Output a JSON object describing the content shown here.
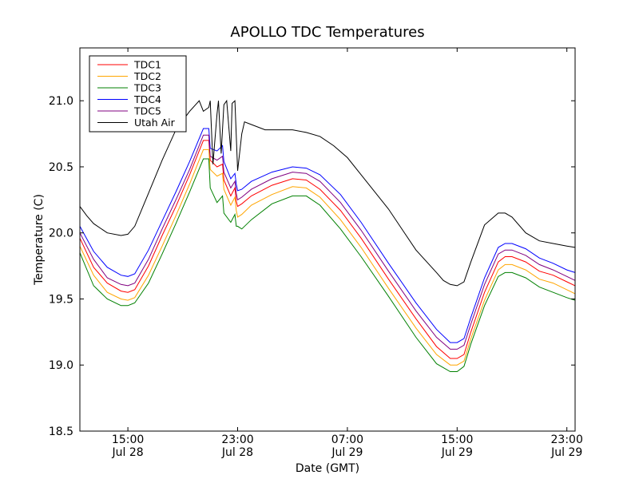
{
  "chart_data": {
    "type": "line",
    "title": "APOLLO TDC Temperatures",
    "xlabel": "Date (GMT)",
    "ylabel": "Temperature (C)",
    "x_unit": "hours since Jul 28 00:00 GMT",
    "xlim": [
      11.5,
      47.6
    ],
    "ylim": [
      18.5,
      21.4
    ],
    "grid": false,
    "legend_position": "top-left",
    "y_ticks": [
      "18.5",
      "19.0",
      "19.5",
      "20.0",
      "20.5",
      "21.0"
    ],
    "y_tick_values": [
      18.5,
      19.0,
      19.5,
      20.0,
      20.5,
      21.0
    ],
    "x_ticks": [
      {
        "value": 15,
        "time": "15:00",
        "date": "Jul 28"
      },
      {
        "value": 23,
        "time": "23:00",
        "date": "Jul 28"
      },
      {
        "value": 31,
        "time": "07:00",
        "date": "Jul 29"
      },
      {
        "value": 39,
        "time": "15:00",
        "date": "Jul 29"
      },
      {
        "value": 47,
        "time": "23:00",
        "date": "Jul 29"
      }
    ],
    "series": [
      {
        "name": "TDC1",
        "color": "#ff0000",
        "x": [
          11.5,
          12.5,
          13.5,
          14.5,
          15.0,
          15.5,
          16.5,
          17.5,
          18.5,
          19.5,
          20.5,
          20.9,
          21.0,
          21.5,
          21.9,
          22.0,
          22.5,
          22.8,
          22.9,
          23.0,
          23.3,
          24.0,
          25.5,
          27.0,
          28.0,
          29.0,
          30.5,
          32.0,
          34.0,
          36.0,
          37.5,
          38.5,
          39.0,
          39.5,
          40.0,
          41.0,
          42.0,
          42.5,
          43.0,
          44.0,
          45.0,
          46.0,
          47.0,
          47.6
        ],
        "y": [
          19.96,
          19.74,
          19.62,
          19.56,
          19.55,
          19.57,
          19.75,
          19.98,
          20.2,
          20.44,
          20.7,
          20.7,
          20.55,
          20.5,
          20.52,
          20.4,
          20.28,
          20.34,
          20.24,
          20.2,
          20.22,
          20.28,
          20.36,
          20.41,
          20.4,
          20.33,
          20.17,
          19.96,
          19.65,
          19.35,
          19.14,
          19.05,
          19.05,
          19.08,
          19.25,
          19.55,
          19.78,
          19.82,
          19.82,
          19.78,
          19.71,
          19.68,
          19.63,
          19.6
        ]
      },
      {
        "name": "TDC2",
        "color": "#ffa500",
        "x": [
          11.5,
          12.5,
          13.5,
          14.5,
          15.0,
          15.5,
          16.5,
          17.5,
          18.5,
          19.5,
          20.5,
          20.9,
          21.0,
          21.5,
          21.9,
          22.0,
          22.5,
          22.8,
          22.9,
          23.0,
          23.3,
          24.0,
          25.5,
          27.0,
          28.0,
          29.0,
          30.5,
          32.0,
          34.0,
          36.0,
          37.5,
          38.5,
          39.0,
          39.5,
          40.0,
          41.0,
          42.0,
          42.5,
          43.0,
          44.0,
          45.0,
          46.0,
          47.0,
          47.6
        ],
        "y": [
          19.9,
          19.68,
          19.55,
          19.5,
          19.49,
          19.51,
          19.68,
          19.9,
          20.13,
          20.37,
          20.63,
          20.63,
          20.48,
          20.43,
          20.45,
          20.33,
          20.21,
          20.27,
          20.17,
          20.12,
          20.14,
          20.21,
          20.29,
          20.35,
          20.34,
          20.27,
          20.1,
          19.89,
          19.58,
          19.28,
          19.08,
          19.0,
          19.0,
          19.03,
          19.2,
          19.49,
          19.72,
          19.76,
          19.76,
          19.72,
          19.65,
          19.62,
          19.57,
          19.54
        ]
      },
      {
        "name": "TDC3",
        "color": "#008000",
        "x": [
          11.5,
          12.5,
          13.5,
          14.5,
          15.0,
          15.5,
          16.5,
          17.5,
          18.5,
          19.5,
          20.5,
          20.9,
          21.0,
          21.5,
          21.9,
          22.0,
          22.5,
          22.8,
          22.9,
          23.0,
          23.3,
          24.0,
          25.5,
          27.0,
          28.0,
          29.0,
          30.5,
          32.0,
          34.0,
          36.0,
          37.5,
          38.5,
          39.0,
          39.5,
          40.0,
          41.0,
          42.0,
          42.5,
          43.0,
          44.0,
          45.0,
          46.0,
          47.0,
          47.6
        ],
        "y": [
          19.85,
          19.6,
          19.5,
          19.45,
          19.45,
          19.47,
          19.62,
          19.84,
          20.07,
          20.31,
          20.56,
          20.56,
          20.34,
          20.23,
          20.28,
          20.15,
          20.08,
          20.14,
          20.05,
          20.05,
          20.03,
          20.1,
          20.22,
          20.28,
          20.28,
          20.21,
          20.03,
          19.82,
          19.52,
          19.21,
          19.01,
          18.95,
          18.95,
          18.99,
          19.16,
          19.45,
          19.67,
          19.7,
          19.7,
          19.66,
          19.59,
          19.55,
          19.51,
          19.49
        ]
      },
      {
        "name": "TDC4",
        "color": "#0000ff",
        "x": [
          11.5,
          12.5,
          13.5,
          14.5,
          15.0,
          15.5,
          16.5,
          17.5,
          18.5,
          19.5,
          20.5,
          20.9,
          21.0,
          21.5,
          21.9,
          22.0,
          22.5,
          22.8,
          22.9,
          23.0,
          23.3,
          24.0,
          25.5,
          27.0,
          28.0,
          29.0,
          30.5,
          32.0,
          34.0,
          36.0,
          37.5,
          38.5,
          39.0,
          39.5,
          40.0,
          41.0,
          42.0,
          42.5,
          43.0,
          44.0,
          45.0,
          46.0,
          47.0,
          47.6
        ],
        "y": [
          20.05,
          19.86,
          19.74,
          19.68,
          19.67,
          19.69,
          19.87,
          20.09,
          20.31,
          20.54,
          20.79,
          20.79,
          20.64,
          20.62,
          20.66,
          20.54,
          20.41,
          20.45,
          20.37,
          20.32,
          20.33,
          20.39,
          20.46,
          20.5,
          20.49,
          20.44,
          20.29,
          20.08,
          19.77,
          19.47,
          19.27,
          19.17,
          19.17,
          19.2,
          19.36,
          19.66,
          19.89,
          19.92,
          19.92,
          19.88,
          19.81,
          19.77,
          19.72,
          19.7
        ]
      },
      {
        "name": "TDC5",
        "color": "#800080",
        "x": [
          11.5,
          12.5,
          13.5,
          14.5,
          15.0,
          15.5,
          16.5,
          17.5,
          18.5,
          19.5,
          20.5,
          20.9,
          21.0,
          21.5,
          21.9,
          22.0,
          22.5,
          22.8,
          22.9,
          23.0,
          23.3,
          24.0,
          25.5,
          27.0,
          28.0,
          29.0,
          30.5,
          32.0,
          34.0,
          36.0,
          37.5,
          38.5,
          39.0,
          39.5,
          40.0,
          41.0,
          42.0,
          42.5,
          43.0,
          44.0,
          45.0,
          46.0,
          47.0,
          47.6
        ],
        "y": [
          20.0,
          19.8,
          19.66,
          19.61,
          19.6,
          19.62,
          19.8,
          20.03,
          20.25,
          20.48,
          20.74,
          20.74,
          20.58,
          20.55,
          20.58,
          20.46,
          20.34,
          20.39,
          20.3,
          20.25,
          20.27,
          20.33,
          20.41,
          20.46,
          20.45,
          20.39,
          20.23,
          20.02,
          19.71,
          19.41,
          19.21,
          19.12,
          19.12,
          19.15,
          19.31,
          19.61,
          19.84,
          19.87,
          19.87,
          19.83,
          19.76,
          19.72,
          19.67,
          19.64
        ]
      },
      {
        "name": "Utah Air",
        "color": "#000000",
        "x": [
          11.5,
          12.0,
          12.5,
          13.5,
          14.5,
          15.0,
          15.5,
          16.5,
          17.5,
          18.5,
          19.5,
          20.2,
          20.5,
          20.9,
          21.0,
          21.2,
          21.5,
          21.6,
          21.8,
          22.0,
          22.2,
          22.5,
          22.6,
          22.8,
          23.0,
          23.3,
          23.5,
          24.0,
          25.0,
          27.0,
          28.0,
          29.0,
          30.0,
          31.0,
          32.0,
          34.0,
          36.0,
          37.5,
          38.0,
          38.5,
          39.0,
          39.5,
          40.0,
          41.0,
          42.0,
          42.5,
          43.0,
          44.0,
          45.0,
          46.0,
          47.0,
          47.6
        ],
        "y": [
          20.2,
          20.13,
          20.07,
          20.0,
          19.98,
          19.99,
          20.05,
          20.3,
          20.55,
          20.78,
          20.92,
          21.0,
          20.92,
          20.95,
          21.0,
          20.52,
          20.9,
          21.0,
          20.6,
          20.97,
          21.0,
          20.62,
          20.98,
          21.0,
          20.47,
          20.75,
          20.84,
          20.82,
          20.78,
          20.78,
          20.76,
          20.73,
          20.66,
          20.57,
          20.44,
          20.18,
          19.87,
          19.7,
          19.64,
          19.61,
          19.6,
          19.63,
          19.78,
          20.06,
          20.15,
          20.15,
          20.12,
          20.0,
          19.94,
          19.92,
          19.9,
          19.89
        ]
      }
    ]
  }
}
